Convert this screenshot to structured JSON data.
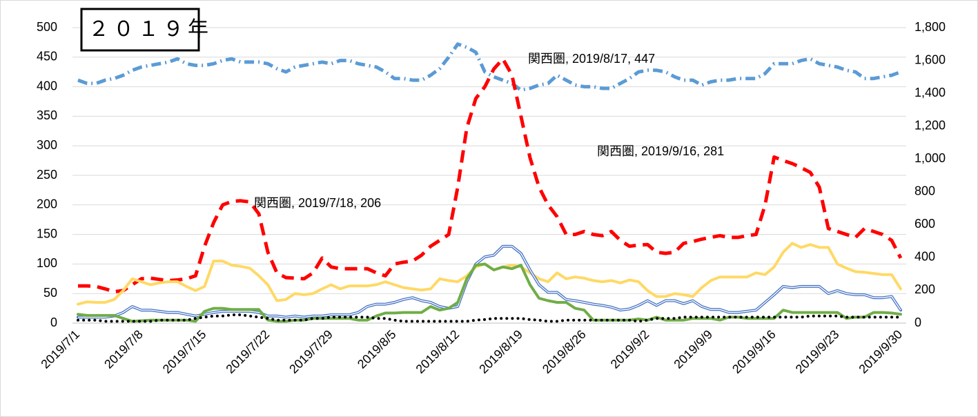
{
  "chart_data": {
    "type": "line",
    "title": "２０１９年",
    "categories": [
      "2019/7/1",
      null,
      null,
      null,
      null,
      null,
      null,
      "2019/7/8",
      null,
      null,
      null,
      null,
      null,
      null,
      "2019/7/15",
      null,
      null,
      null,
      null,
      null,
      null,
      "2019/7/22",
      null,
      null,
      null,
      null,
      null,
      null,
      "2019/7/29",
      null,
      null,
      null,
      null,
      null,
      null,
      "2019/8/5",
      null,
      null,
      null,
      null,
      null,
      null,
      "2019/8/12",
      null,
      null,
      null,
      null,
      null,
      null,
      "2019/8/19",
      null,
      null,
      null,
      null,
      null,
      null,
      "2019/8/26",
      null,
      null,
      null,
      null,
      null,
      null,
      "2019/9/2",
      null,
      null,
      null,
      null,
      null,
      null,
      "2019/9/9",
      null,
      null,
      null,
      null,
      null,
      null,
      "2019/9/16",
      null,
      null,
      null,
      null,
      null,
      null,
      "2019/9/23",
      null,
      null,
      null,
      null,
      null,
      null,
      "2019/9/30"
    ],
    "ylim": [
      0,
      500
    ],
    "yticks": [
      0,
      50,
      100,
      150,
      200,
      250,
      300,
      350,
      400,
      450,
      500
    ],
    "y2lim": [
      0,
      1800
    ],
    "y2ticks": [
      0,
      200,
      400,
      600,
      800,
      {
        "value": 1000,
        "label": "1,000"
      },
      {
        "value": 1200,
        "label": "1,200"
      },
      {
        "value": 1400,
        "label": "1,400"
      },
      {
        "value": 1600,
        "label": "1,600"
      },
      {
        "value": 1800,
        "label": "1,800"
      }
    ],
    "grid": true,
    "series": [
      {
        "color": "#5b9bd5",
        "style": "dash-dot",
        "axis": "y2",
        "values": [
          1480,
          1460,
          1460,
          1480,
          1490,
          1510,
          1540,
          1560,
          1570,
          1580,
          1590,
          1610,
          1580,
          1570,
          1570,
          1580,
          1600,
          1610,
          1590,
          1590,
          1590,
          1580,
          1550,
          1530,
          1560,
          1570,
          1580,
          1590,
          1580,
          1600,
          1600,
          1580,
          1570,
          1560,
          1530,
          1490,
          1490,
          1480,
          1480,
          1510,
          1550,
          1620,
          1700,
          1680,
          1650,
          1530,
          1500,
          1480,
          1460,
          1420,
          1430,
          1450,
          1460,
          1510,
          1480,
          1450,
          1440,
          1440,
          1430,
          1430,
          1460,
          1490,
          1530,
          1540,
          1540,
          1530,
          1500,
          1480,
          1480,
          1450,
          1470,
          1480,
          1480,
          1490,
          1490,
          1490,
          1520,
          1580,
          1580,
          1580,
          1600,
          1610,
          1580,
          1570,
          1560,
          1540,
          1530,
          1490,
          1490,
          1500,
          1510,
          1530
        ]
      },
      {
        "name": "関西圏",
        "color": "#ff0000",
        "style": "dash",
        "values": [
          63,
          63,
          62,
          58,
          53,
          55,
          65,
          75,
          76,
          74,
          72,
          73,
          75,
          80,
          130,
          170,
          200,
          206,
          207,
          205,
          185,
          120,
          85,
          77,
          76,
          75,
          85,
          110,
          95,
          92,
          92,
          92,
          92,
          85,
          80,
          100,
          103,
          105,
          115,
          130,
          140,
          150,
          230,
          330,
          380,
          400,
          430,
          447,
          420,
          350,
          280,
          230,
          200,
          180,
          150,
          150,
          155,
          150,
          148,
          155,
          140,
          130,
          132,
          133,
          120,
          118,
          120,
          135,
          138,
          142,
          145,
          148,
          145,
          145,
          148,
          150,
          200,
          281,
          275,
          270,
          263,
          255,
          230,
          160,
          155,
          150,
          145,
          160,
          155,
          150,
          140,
          110
        ]
      },
      {
        "color": "#ffd966",
        "style": "solid",
        "values": [
          32,
          36,
          35,
          35,
          40,
          55,
          75,
          70,
          65,
          68,
          70,
          70,
          62,
          55,
          62,
          105,
          105,
          98,
          96,
          93,
          80,
          65,
          38,
          40,
          50,
          48,
          50,
          58,
          65,
          58,
          63,
          63,
          63,
          65,
          70,
          65,
          60,
          58,
          56,
          58,
          75,
          72,
          70,
          80,
          95,
          100,
          90,
          95,
          98,
          95,
          85,
          75,
          70,
          85,
          75,
          78,
          76,
          72,
          70,
          72,
          68,
          73,
          70,
          55,
          45,
          45,
          50,
          48,
          45,
          60,
          72,
          78,
          78,
          78,
          78,
          85,
          82,
          95,
          120,
          135,
          128,
          133,
          128,
          128,
          100,
          93,
          87,
          86,
          84,
          82,
          82,
          58
        ]
      },
      {
        "color": "#4472c4",
        "style": "double",
        "values": [
          10,
          10,
          10,
          10,
          12,
          18,
          28,
          22,
          22,
          20,
          18,
          18,
          15,
          12,
          15,
          18,
          20,
          20,
          20,
          20,
          18,
          12,
          12,
          10,
          12,
          10,
          12,
          12,
          14,
          14,
          14,
          18,
          28,
          32,
          32,
          35,
          40,
          43,
          38,
          35,
          28,
          25,
          28,
          70,
          100,
          112,
          115,
          130,
          130,
          118,
          90,
          65,
          52,
          52,
          40,
          38,
          35,
          32,
          30,
          27,
          22,
          24,
          30,
          38,
          30,
          38,
          38,
          33,
          38,
          28,
          23,
          23,
          18,
          18,
          20,
          22,
          35,
          48,
          62,
          60,
          62,
          62,
          62,
          50,
          55,
          50,
          48,
          48,
          43,
          43,
          45,
          22
        ]
      },
      {
        "color": "#70ad47",
        "style": "solid",
        "values": [
          15,
          13,
          13,
          13,
          13,
          8,
          3,
          4,
          5,
          5,
          5,
          5,
          5,
          3,
          20,
          25,
          25,
          23,
          23,
          23,
          23,
          5,
          3,
          3,
          5,
          5,
          8,
          8,
          8,
          8,
          8,
          5,
          5,
          12,
          17,
          17,
          18,
          18,
          18,
          28,
          22,
          25,
          35,
          75,
          98,
          100,
          90,
          95,
          92,
          98,
          65,
          42,
          38,
          35,
          35,
          25,
          22,
          5,
          5,
          5,
          5,
          5,
          7,
          5,
          10,
          5,
          5,
          5,
          8,
          8,
          8,
          5,
          10,
          10,
          8,
          8,
          8,
          8,
          22,
          18,
          18,
          18,
          18,
          18,
          18,
          8,
          10,
          10,
          18,
          18,
          17,
          15
        ]
      },
      {
        "color": "#000000",
        "style": "dotted",
        "values": [
          5,
          5,
          5,
          3,
          3,
          3,
          3,
          3,
          3,
          5,
          5,
          5,
          5,
          8,
          10,
          12,
          12,
          14,
          14,
          12,
          10,
          8,
          5,
          5,
          5,
          5,
          8,
          8,
          10,
          10,
          10,
          10,
          10,
          8,
          8,
          5,
          3,
          3,
          3,
          3,
          3,
          3,
          3,
          3,
          5,
          6,
          8,
          8,
          8,
          8,
          6,
          5,
          3,
          3,
          5,
          5,
          5,
          5,
          5,
          5,
          5,
          5,
          3,
          5,
          8,
          8,
          8,
          10,
          10,
          10,
          10,
          10,
          10,
          10,
          10,
          10,
          10,
          10,
          10,
          10,
          10,
          12,
          12,
          12,
          12,
          10,
          10,
          10,
          10,
          10,
          10,
          10
        ]
      }
    ],
    "annotations": [
      "関西圏, 2019/7/18, 206",
      "関西圏, 2019/8/17, 447",
      "関西圏, 2019/9/16, 281"
    ]
  }
}
